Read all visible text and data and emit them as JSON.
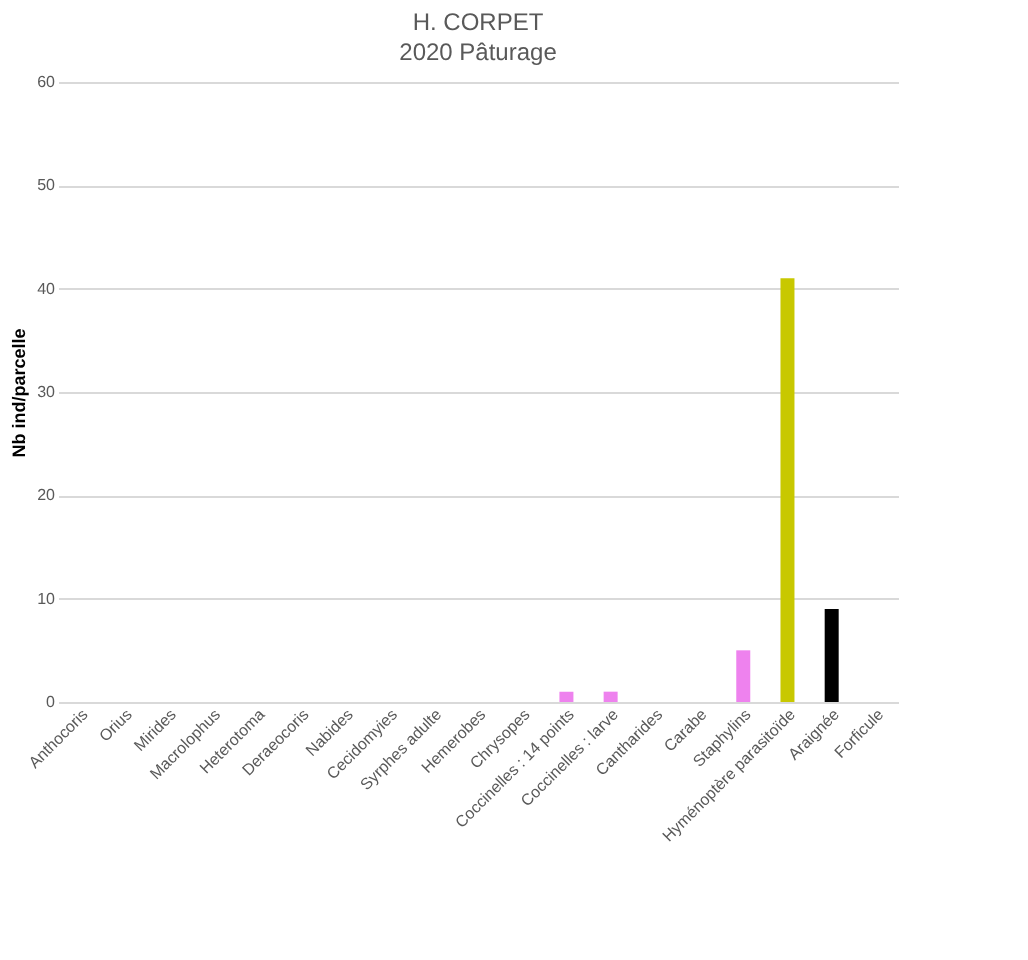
{
  "chart_data": {
    "type": "bar",
    "title": "H. CORPET",
    "subtitle": "2020 Pâturage",
    "ylabel": "Nb ind/parcelle",
    "categories": [
      "Anthocoris",
      "Orius",
      "Mirides",
      "Macrolophus",
      "Heterotoma",
      "Deraeocoris",
      "Nabides",
      "Cecidomyies",
      "Syrphes adulte",
      "Hemerobes",
      "Chrysopes",
      "Coccinelles : 14 points",
      "Coccinelles : larve",
      "Cantharides",
      "Carabe",
      "Staphylins",
      "Hyménoptère parasitoïde",
      "Araignée",
      "Forficule"
    ],
    "values": [
      0,
      0,
      0,
      0,
      0,
      0,
      0,
      0,
      0,
      0,
      0,
      1,
      1,
      0,
      0,
      5,
      41,
      9,
      0
    ],
    "colors": [
      "#ee82ee",
      "#ee82ee",
      "#ee82ee",
      "#ee82ee",
      "#ee82ee",
      "#ee82ee",
      "#ee82ee",
      "#ee82ee",
      "#ee82ee",
      "#ee82ee",
      "#ee82ee",
      "#ee82ee",
      "#ee82ee",
      "#ee82ee",
      "#ee82ee",
      "#ee82ee",
      "#c8c800",
      "#000000",
      "#000000"
    ],
    "ylim": [
      0,
      60
    ],
    "yticks": [
      0,
      10,
      20,
      30,
      40,
      50,
      60
    ],
    "grid": "y"
  }
}
